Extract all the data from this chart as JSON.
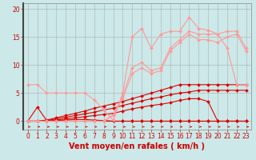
{
  "x": [
    0,
    1,
    2,
    3,
    4,
    5,
    6,
    7,
    8,
    9,
    10,
    11,
    12,
    13,
    14,
    15,
    16,
    17,
    18,
    19,
    20,
    21,
    22,
    23
  ],
  "series": [
    {
      "y": [
        0,
        0,
        0,
        0,
        0,
        0,
        0,
        0,
        0,
        0,
        0,
        0,
        0,
        0,
        0,
        0,
        0,
        0,
        0,
        0,
        0,
        0,
        0,
        0
      ],
      "color": "#dd0000",
      "lw": 0.8,
      "ms": 2.0
    },
    {
      "y": [
        0,
        2.5,
        0.1,
        0.1,
        0.2,
        0.3,
        0.3,
        0.2,
        0.1,
        0.0,
        0.0,
        0.0,
        0.0,
        0.0,
        0.0,
        0.0,
        0.0,
        0.0,
        0.0,
        0.0,
        0.0,
        0.0,
        0.0,
        0.0
      ],
      "color": "#dd0000",
      "lw": 0.8,
      "ms": 2.0
    },
    {
      "y": [
        0,
        0,
        0,
        0.2,
        0.4,
        0.6,
        0.8,
        1.0,
        1.2,
        1.4,
        1.8,
        2.2,
        2.5,
        2.8,
        3.0,
        3.3,
        3.7,
        4.0,
        4.0,
        3.5,
        0.0,
        0.0,
        0.0,
        0.0
      ],
      "color": "#dd0000",
      "lw": 0.8,
      "ms": 2.0
    },
    {
      "y": [
        0,
        0,
        0.1,
        0.4,
        0.7,
        1.0,
        1.3,
        1.6,
        2.0,
        2.3,
        2.8,
        3.2,
        3.6,
        4.0,
        4.3,
        4.7,
        5.0,
        5.2,
        5.5,
        5.5,
        5.5,
        5.5,
        5.5,
        5.5
      ],
      "color": "#dd0000",
      "lw": 0.8,
      "ms": 2.0
    },
    {
      "y": [
        0,
        0,
        0.2,
        0.6,
        1.0,
        1.4,
        1.8,
        2.3,
        2.7,
        3.1,
        3.5,
        4.0,
        4.5,
        5.0,
        5.5,
        6.0,
        6.5,
        6.5,
        6.5,
        6.5,
        6.5,
        6.5,
        6.5,
        6.5
      ],
      "color": "#dd0000",
      "lw": 0.8,
      "ms": 2.0
    },
    {
      "y": [
        6.5,
        6.5,
        5.0,
        5.0,
        5.0,
        5.0,
        5.0,
        3.8,
        2.0,
        0.2,
        5.0,
        15.0,
        16.5,
        13.0,
        15.5,
        16.0,
        16.0,
        18.5,
        16.5,
        16.2,
        15.5,
        13.0,
        6.5,
        6.5
      ],
      "color": "#ff9999",
      "lw": 0.8,
      "ms": 2.0
    },
    {
      "y": [
        0,
        0,
        0,
        0,
        0,
        0,
        0,
        0,
        0,
        1.2,
        4.5,
        9.5,
        10.5,
        9.0,
        9.5,
        13.0,
        14.5,
        16.0,
        15.5,
        15.5,
        15.5,
        16.0,
        16.0,
        13.0
      ],
      "color": "#ff9999",
      "lw": 0.8,
      "ms": 2.0
    },
    {
      "y": [
        0,
        0,
        0,
        0,
        0,
        0,
        0,
        0,
        0,
        1.0,
        4.0,
        8.5,
        9.5,
        8.5,
        9.0,
        12.5,
        14.0,
        15.5,
        14.5,
        14.5,
        14.0,
        15.0,
        15.5,
        12.5
      ],
      "color": "#ff9999",
      "lw": 0.8,
      "ms": 2.0
    }
  ],
  "bgcolor": "#cce8e8",
  "grid_color": "#aaaaaa",
  "xlabel": "Vent moyen/en rafales ( km/h )",
  "xlabel_color": "#cc0000",
  "xlabel_fontsize": 7,
  "yticks": [
    0,
    5,
    10,
    15,
    20
  ],
  "xticks": [
    0,
    1,
    2,
    3,
    4,
    5,
    6,
    7,
    8,
    9,
    10,
    11,
    12,
    13,
    14,
    15,
    16,
    17,
    18,
    19,
    20,
    21,
    22,
    23
  ],
  "ylim": [
    -1.5,
    21
  ],
  "xlim": [
    -0.5,
    23.5
  ],
  "tick_color": "#cc0000",
  "tick_fontsize": 5.5,
  "arrow_color": "#cc0000"
}
